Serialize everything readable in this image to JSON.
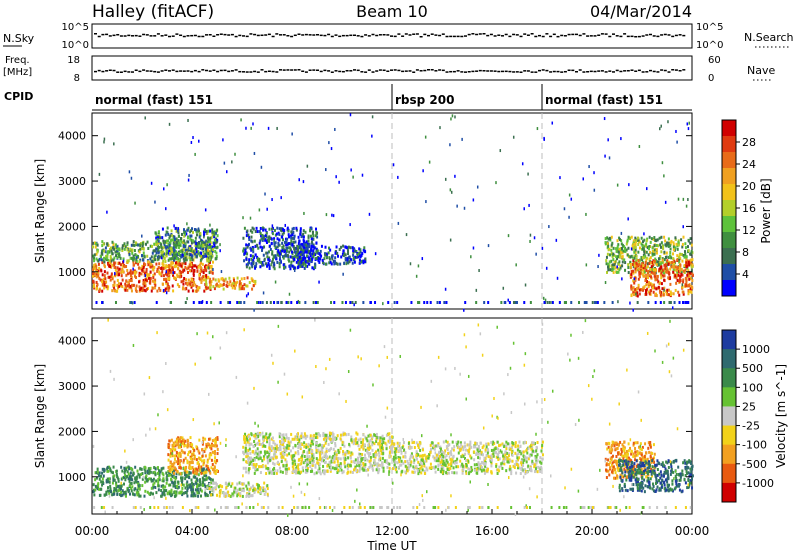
{
  "header": {
    "radar": "Halley (fitACF)",
    "beam": "Beam 10",
    "date": "04/Mar/2014"
  },
  "top_panels": {
    "nsky_label": "N.Sky",
    "nsky_ticks": [
      "10^5",
      "10^0"
    ],
    "nsearch_label": "N.Search",
    "nsearch_ticks": [
      "10^5",
      "10^0"
    ],
    "freq_label_1": "Freq.",
    "freq_label_2": "[MHz]",
    "freq_ticks": [
      "18",
      "8"
    ],
    "nave_label": "Nave",
    "nave_ticks": [
      "60",
      "0"
    ],
    "cpid_label": "CPID",
    "cpid_segments": [
      {
        "label": "normal (fast) 151",
        "start_h": 0,
        "end_h": 12
      },
      {
        "label": "rbsp 200",
        "start_h": 12,
        "end_h": 18
      },
      {
        "label": "normal (fast) 151",
        "start_h": 18,
        "end_h": 24
      }
    ]
  },
  "x_axis": {
    "label": "Time UT",
    "ticks": [
      "00:00",
      "04:00",
      "08:00",
      "12:00",
      "16:00",
      "20:00",
      "00:00"
    ]
  },
  "colors": {
    "power": [
      "#0000ff",
      "#1f4ea6",
      "#3b6f50",
      "#3f8f3f",
      "#5ec23b",
      "#b3cf2a",
      "#f2c21a",
      "#f0a020",
      "#e86b19",
      "#e03a10",
      "#d00000"
    ],
    "velocity": [
      "#1e3ca0",
      "#2f6a6f",
      "#3a8a4a",
      "#66c233",
      "#c8c8c8",
      "#f2d21a",
      "#f2a020",
      "#e85a10",
      "#d00000"
    ]
  },
  "chart_data": [
    {
      "type": "heatmap",
      "name": "power",
      "ylabel": "Slant Range [km]",
      "ylim": [
        180,
        4500
      ],
      "y_ticks": [
        "1000",
        "2000",
        "3000",
        "4000"
      ],
      "colorbar_label": "Power [dB]",
      "colorbar_ticks": [
        "4",
        "8",
        "12",
        "16",
        "20",
        "24",
        "28"
      ],
      "colorbar_range": [
        0,
        30
      ],
      "regions": [
        {
          "t0": 0.0,
          "t1": 4.8,
          "r0": 600,
          "r1": 1250,
          "intensity": 0.8
        },
        {
          "t0": 0.0,
          "t1": 4.8,
          "r0": 1250,
          "r1": 1700,
          "intensity": 0.35
        },
        {
          "t0": 2.5,
          "t1": 5.0,
          "r0": 1300,
          "r1": 2000,
          "intensity": 0.25
        },
        {
          "t0": 4.5,
          "t1": 6.5,
          "r0": 650,
          "r1": 900,
          "intensity": 0.7
        },
        {
          "t0": 6.0,
          "t1": 9.0,
          "r0": 1100,
          "r1": 2000,
          "intensity": 0.1
        },
        {
          "t0": 8.0,
          "t1": 11.0,
          "r0": 1200,
          "r1": 1600,
          "intensity": 0.1
        },
        {
          "t0": 20.5,
          "t1": 24.0,
          "r0": 1000,
          "r1": 1800,
          "intensity": 0.4
        },
        {
          "t0": 21.5,
          "t1": 24.0,
          "r0": 500,
          "r1": 1300,
          "intensity": 0.8
        }
      ]
    },
    {
      "type": "heatmap",
      "name": "velocity",
      "ylabel": "Slant Range [km]",
      "ylim": [
        180,
        4500
      ],
      "y_ticks": [
        "1000",
        "2000",
        "3000",
        "4000"
      ],
      "colorbar_label": "Velocity [m s^-1]",
      "colorbar_ticks": [
        "1000",
        "500",
        "100",
        "25",
        "-25",
        "-100",
        "-500",
        "-1000"
      ],
      "regions": [
        {
          "t0": 0.0,
          "t1": 4.8,
          "r0": 600,
          "r1": 1250,
          "v": 100
        },
        {
          "t0": 3.0,
          "t1": 5.0,
          "r0": 1100,
          "r1": 1900,
          "v": -100
        },
        {
          "t0": 4.5,
          "t1": 7.0,
          "r0": 600,
          "r1": 900,
          "v": 0
        },
        {
          "t0": 6.0,
          "t1": 12.0,
          "r0": 1100,
          "r1": 2000,
          "v": 0
        },
        {
          "t0": 12.0,
          "t1": 18.0,
          "r0": 1100,
          "r1": 1800,
          "v": 0
        },
        {
          "t0": 20.5,
          "t1": 22.5,
          "r0": 1000,
          "r1": 1800,
          "v": -100
        },
        {
          "t0": 21.0,
          "t1": 24.0,
          "r0": 700,
          "r1": 1400,
          "v": 500
        }
      ]
    }
  ]
}
